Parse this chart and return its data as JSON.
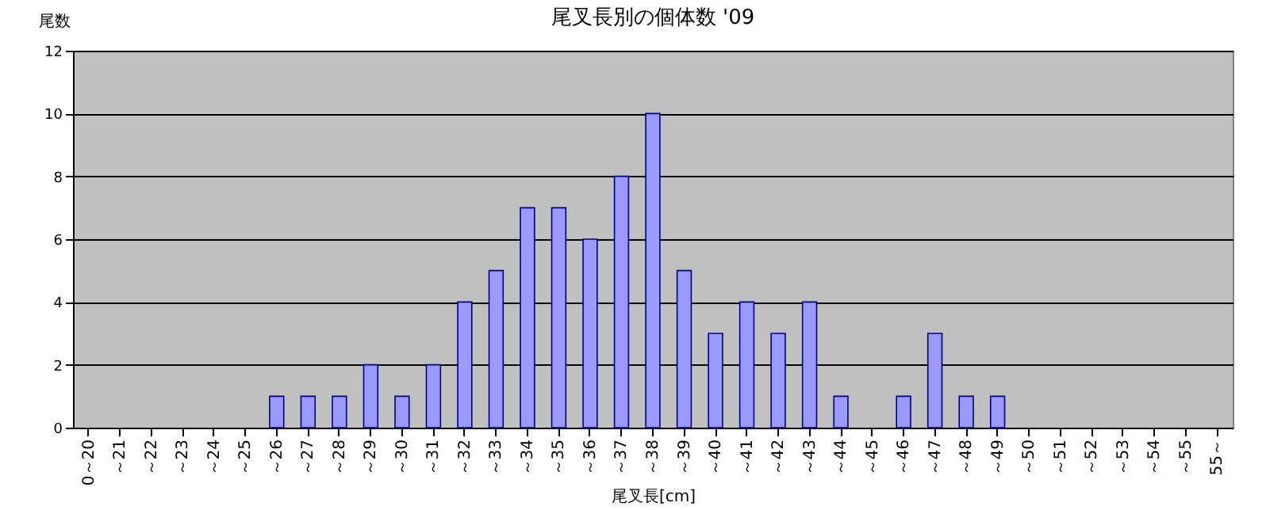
{
  "chart_data": {
    "type": "bar",
    "title": "尾叉長別の個体数 '09",
    "xlabel": "尾叉長[cm]",
    "ylabel": "尾数",
    "categories": [
      "0～20",
      "～21",
      "～22",
      "～23",
      "～24",
      "～25",
      "～26",
      "～27",
      "～28",
      "～29",
      "～30",
      "～31",
      "～32",
      "～33",
      "～34",
      "～35",
      "～36",
      "～37",
      "～38",
      "～39",
      "～40",
      "～41",
      "～42",
      "～43",
      "～44",
      "～45",
      "～46",
      "～47",
      "～48",
      "～49",
      "～50",
      "～51",
      "～52",
      "～53",
      "～54",
      "～55",
      "55～"
    ],
    "values": [
      0,
      0,
      0,
      0,
      0,
      0,
      1,
      1,
      1,
      2,
      1,
      2,
      4,
      5,
      7,
      7,
      6,
      8,
      10,
      5,
      3,
      4,
      3,
      4,
      1,
      0,
      1,
      3,
      1,
      1,
      0,
      0,
      0,
      0,
      0,
      0,
      0
    ],
    "color": "#9999ff",
    "ylim": [
      0,
      12
    ],
    "yticks": [
      0,
      2,
      4,
      6,
      8,
      10,
      12
    ],
    "grid": "y"
  }
}
